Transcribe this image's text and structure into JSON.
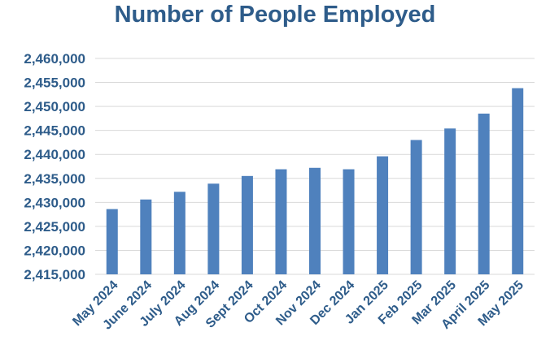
{
  "chart_data": {
    "type": "bar",
    "title": "Number of People Employed",
    "xlabel": "",
    "ylabel": "",
    "categories": [
      "May 2024",
      "June 2024",
      "July 2024",
      "Aug 2024",
      "Sept 2024",
      "Oct 2024",
      "Nov 2024",
      "Dec 2024",
      "Jan 2025",
      "Feb 2025",
      "Mar 2025",
      "April 2025",
      "May 2025"
    ],
    "values": [
      2428600,
      2430600,
      2432200,
      2433900,
      2435500,
      2436900,
      2437200,
      2436900,
      2439600,
      2443000,
      2445400,
      2448500,
      2453800
    ],
    "ylim": [
      2415000,
      2460000
    ],
    "yticks": [
      2415000,
      2420000,
      2425000,
      2430000,
      2435000,
      2440000,
      2445000,
      2450000,
      2455000,
      2460000
    ],
    "ytick_labels": [
      "2,415,000",
      "2,420,000",
      "2,425,000",
      "2,430,000",
      "2,435,000",
      "2,440,000",
      "2,445,000",
      "2,450,000",
      "2,455,000",
      "2,460,000"
    ],
    "grid": true,
    "colors": {
      "bar": "#4F81BD",
      "grid": "#D9D9D9",
      "text": "#2E5C8A"
    }
  }
}
